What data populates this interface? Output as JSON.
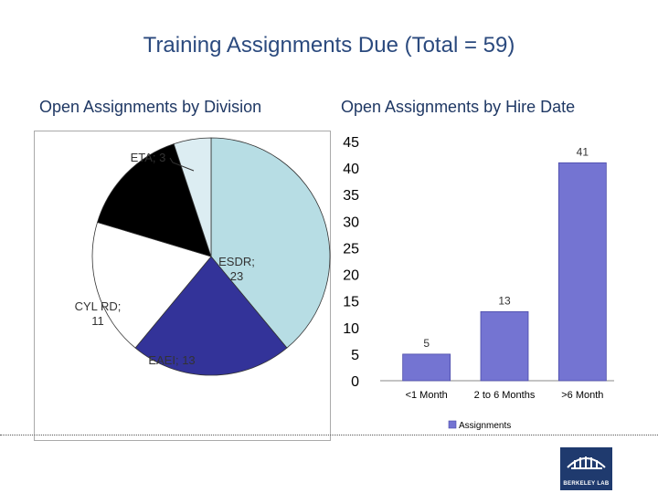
{
  "page": {
    "title": "Training Assignments Due (Total = 59)"
  },
  "chart_data": [
    {
      "type": "pie",
      "title": "Open Assignments by Division",
      "slices": [
        {
          "name": "ESDR",
          "value": 23,
          "label_lines": [
            "ESDR;",
            "23"
          ],
          "color": "#b7dde4"
        },
        {
          "name": "EAEI",
          "value": 13,
          "label_lines": [
            "EAEI; 13"
          ],
          "color": "#333399"
        },
        {
          "name": "CYL RD",
          "value": 11,
          "label_lines": [
            "CYL RD;",
            "11"
          ],
          "color": "#ffffff"
        },
        {
          "name": "",
          "value": 9,
          "label_lines": [],
          "color": "#000000"
        },
        {
          "name": "ETA",
          "value": 3,
          "label_lines": [
            "ETA; 3"
          ],
          "color": "#dcedf2"
        }
      ]
    },
    {
      "type": "bar",
      "title": "Open Assignments by Hire Date",
      "categories": [
        "<1 Month",
        "2 to 6 Months",
        ">6 Month"
      ],
      "series": [
        {
          "name": "Assignments",
          "values": [
            5,
            13,
            41
          ],
          "color": "#7474d2"
        }
      ],
      "ylim": [
        0,
        45
      ],
      "yticks": [
        0,
        5,
        10,
        15,
        20,
        25,
        30,
        35,
        40,
        45
      ],
      "legend": "bottom"
    }
  ],
  "logo": {
    "text": "BERKELEY LAB"
  }
}
